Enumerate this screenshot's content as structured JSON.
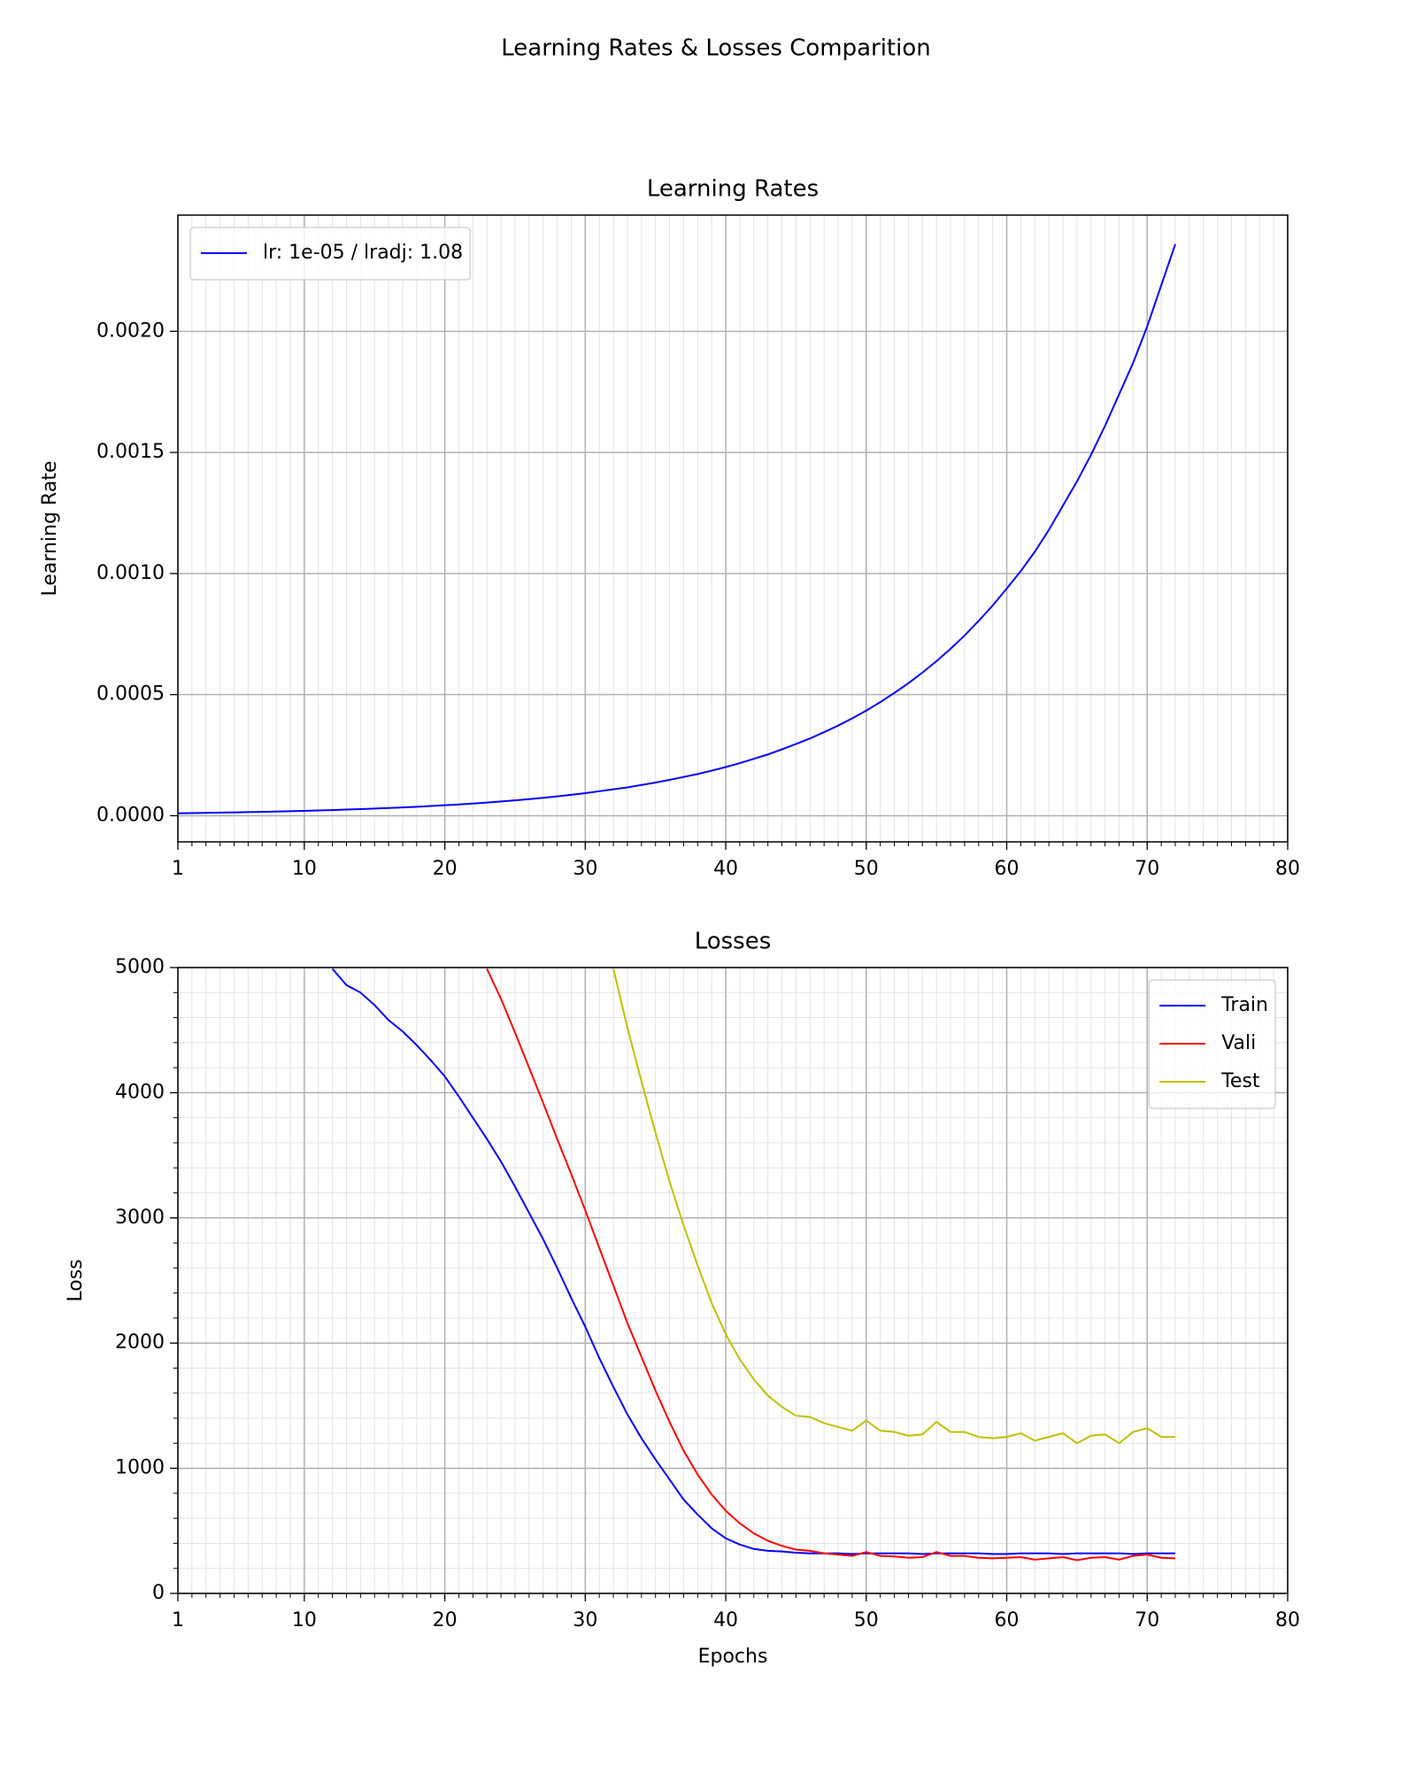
{
  "title": "Learning Rates & Losses Comparition",
  "chart_data": [
    {
      "type": "line",
      "title": "Learning Rates",
      "y_label": "Learning Rate",
      "x": [
        1,
        2,
        3,
        4,
        5,
        6,
        7,
        8,
        9,
        10,
        11,
        12,
        13,
        14,
        15,
        16,
        17,
        18,
        19,
        20,
        21,
        22,
        23,
        24,
        25,
        26,
        27,
        28,
        29,
        30,
        31,
        32,
        33,
        34,
        35,
        36,
        37,
        38,
        39,
        40,
        41,
        42,
        43,
        44,
        45,
        46,
        47,
        48,
        49,
        50,
        51,
        52,
        53,
        54,
        55,
        56,
        57,
        58,
        59,
        60,
        61,
        62,
        63,
        64,
        65,
        66,
        67,
        68,
        69,
        70,
        71,
        72
      ],
      "series": [
        {
          "name": "lr: 1e-05 / lradj: 1.08",
          "color": "#0000ff",
          "values": [
            1e-05,
            1.08e-05,
            1.17e-05,
            1.26e-05,
            1.36e-05,
            1.47e-05,
            1.59e-05,
            1.71e-05,
            1.85e-05,
            2e-05,
            2.16e-05,
            2.33e-05,
            2.52e-05,
            2.72e-05,
            2.94e-05,
            3.17e-05,
            3.43e-05,
            3.7e-05,
            4e-05,
            4.32e-05,
            4.66e-05,
            5.03e-05,
            5.44e-05,
            5.87e-05,
            6.34e-05,
            6.85e-05,
            7.4e-05,
            7.99e-05,
            8.63e-05,
            9.32e-05,
            0.000101,
            0.000109,
            0.000117,
            0.000127,
            0.000137,
            0.000148,
            0.00016,
            0.000172,
            0.000186,
            0.000201,
            0.000217,
            0.000235,
            0.000253,
            0.000274,
            0.000296,
            0.000319,
            0.000345,
            0.000372,
            0.000402,
            0.000434,
            0.000469,
            0.000507,
            0.000547,
            0.000591,
            0.000638,
            0.000689,
            0.000744,
            0.000804,
            0.000868,
            0.000938,
            0.00101,
            0.00109,
            0.00118,
            0.00128,
            0.00138,
            0.00149,
            0.00161,
            0.00174,
            0.00187,
            0.00202,
            0.00219,
            0.00236
          ]
        }
      ],
      "xlim": [
        1,
        80
      ],
      "xticks": [
        1,
        10,
        20,
        30,
        40,
        50,
        60,
        70,
        80
      ],
      "ylim": [
        -0.000108,
        0.00248
      ],
      "yticks": [
        {
          "value": 0,
          "label": "0.0000"
        },
        {
          "value": 0.0005,
          "label": "0.0005"
        },
        {
          "value": 0.001,
          "label": "0.0010"
        },
        {
          "value": 0.0015,
          "label": "0.0015"
        },
        {
          "value": 0.002,
          "label": "0.0020"
        }
      ],
      "grid": true,
      "minor_grid": "x",
      "legend": "upper-left"
    },
    {
      "type": "line",
      "title": "Losses",
      "x_label": "Epochs",
      "y_label": "Loss",
      "x": [
        1,
        2,
        3,
        4,
        5,
        6,
        7,
        8,
        9,
        10,
        11,
        12,
        13,
        14,
        15,
        16,
        17,
        18,
        19,
        20,
        21,
        22,
        23,
        24,
        25,
        26,
        27,
        28,
        29,
        30,
        31,
        32,
        33,
        34,
        35,
        36,
        37,
        38,
        39,
        40,
        41,
        42,
        43,
        44,
        45,
        46,
        47,
        48,
        49,
        50,
        51,
        52,
        53,
        54,
        55,
        56,
        57,
        58,
        59,
        60,
        61,
        62,
        63,
        64,
        65,
        66,
        67,
        68,
        69,
        70,
        71,
        72
      ],
      "series": [
        {
          "name": "Train",
          "color": "#0000ff",
          "values": [
            null,
            null,
            null,
            null,
            null,
            null,
            null,
            null,
            null,
            null,
            null,
            4990,
            4860,
            4800,
            4700,
            4580,
            4490,
            4380,
            4260,
            4130,
            3970,
            3800,
            3630,
            3450,
            3250,
            3040,
            2830,
            2600,
            2360,
            2130,
            1880,
            1650,
            1430,
            1240,
            1070,
            910,
            750,
            630,
            520,
            440,
            390,
            355,
            340,
            335,
            325,
            320,
            320,
            320,
            315,
            320,
            320,
            320,
            320,
            315,
            320,
            320,
            320,
            320,
            315,
            315,
            320,
            320,
            320,
            315,
            320,
            320,
            320,
            320,
            315,
            320,
            320,
            320
          ]
        },
        {
          "name": "Vali",
          "color": "#ff0000",
          "values": [
            null,
            null,
            null,
            null,
            null,
            null,
            null,
            null,
            null,
            null,
            null,
            null,
            null,
            null,
            null,
            null,
            null,
            null,
            null,
            null,
            null,
            null,
            4990,
            4750,
            4480,
            4200,
            3920,
            3630,
            3350,
            3060,
            2760,
            2460,
            2160,
            1890,
            1620,
            1370,
            1140,
            950,
            790,
            660,
            560,
            480,
            420,
            380,
            350,
            340,
            320,
            310,
            300,
            330,
            300,
            295,
            285,
            290,
            330,
            300,
            300,
            285,
            280,
            285,
            290,
            270,
            280,
            290,
            265,
            285,
            290,
            270,
            300,
            310,
            285,
            280
          ]
        },
        {
          "name": "Test",
          "color": "#bfbf00",
          "values": [
            null,
            null,
            null,
            null,
            null,
            null,
            null,
            null,
            null,
            null,
            null,
            null,
            null,
            null,
            null,
            null,
            null,
            null,
            null,
            null,
            null,
            null,
            null,
            null,
            null,
            null,
            null,
            null,
            null,
            null,
            null,
            4990,
            4520,
            4090,
            3680,
            3290,
            2940,
            2620,
            2320,
            2070,
            1870,
            1710,
            1580,
            1490,
            1420,
            1410,
            1360,
            1330,
            1300,
            1380,
            1300,
            1290,
            1260,
            1270,
            1370,
            1290,
            1290,
            1250,
            1240,
            1250,
            1280,
            1220,
            1250,
            1280,
            1200,
            1260,
            1270,
            1200,
            1290,
            1320,
            1250,
            1250
          ]
        }
      ],
      "xlim": [
        1,
        80
      ],
      "xticks": [
        1,
        10,
        20,
        30,
        40,
        50,
        60,
        70,
        80
      ],
      "ylim": [
        0,
        5000
      ],
      "yticks": [
        0,
        1000,
        2000,
        3000,
        4000,
        5000
      ],
      "grid": true,
      "minor_grid": "both",
      "legend": "upper-right"
    }
  ]
}
